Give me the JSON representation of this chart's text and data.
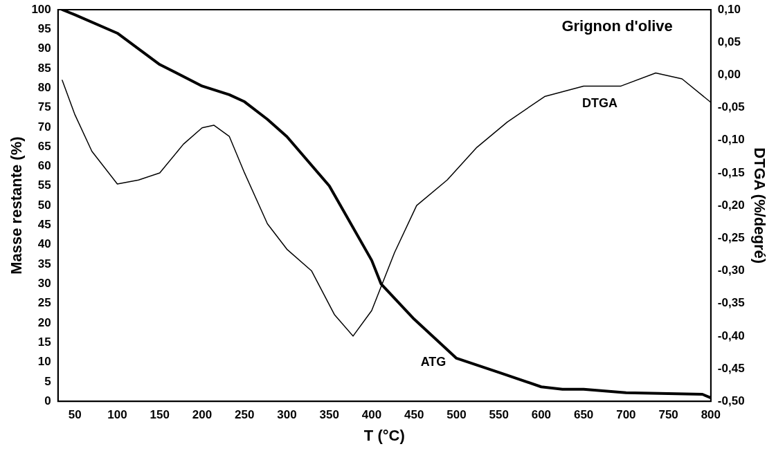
{
  "chart_data": {
    "type": "line",
    "title": "Grignon d'olive",
    "xlabel": "T (°C)",
    "ylabel": "Masse restante (%)",
    "y2label": "DTGA (%/degré)",
    "xlim": [
      30,
      800
    ],
    "xticks": [
      50,
      100,
      150,
      200,
      250,
      300,
      350,
      400,
      450,
      500,
      550,
      600,
      650,
      700,
      750,
      800
    ],
    "ylim": [
      0,
      100
    ],
    "yticks": [
      0,
      5,
      10,
      15,
      20,
      25,
      30,
      35,
      40,
      45,
      50,
      55,
      60,
      65,
      70,
      75,
      80,
      85,
      90,
      95,
      100
    ],
    "y2lim": [
      -0.5,
      0.1
    ],
    "y2ticks": [
      {
        "value": -0.5,
        "label": "-0,50"
      },
      {
        "value": -0.45,
        "label": "-0,45"
      },
      {
        "value": -0.4,
        "label": "-0,40"
      },
      {
        "value": -0.35,
        "label": "-0,35"
      },
      {
        "value": -0.3,
        "label": "-0,30"
      },
      {
        "value": -0.25,
        "label": "-0,25"
      },
      {
        "value": -0.2,
        "label": "-0,20"
      },
      {
        "value": -0.15,
        "label": "-0,15"
      },
      {
        "value": -0.1,
        "label": "-0,10"
      },
      {
        "value": -0.05,
        "label": "-0,05"
      },
      {
        "value": 0,
        "label": "0,00"
      },
      {
        "value": 0.05,
        "label": "0,05"
      },
      {
        "value": 0.1,
        "label": "0,10"
      }
    ],
    "grid": false,
    "legend": false,
    "marker": "none",
    "line_style": "solid",
    "series": [
      {
        "color": "#000000",
        "axis": "y",
        "x": [
          35,
          50,
          100,
          150,
          200,
          232,
          250,
          277,
          300,
          350,
          400,
          411,
          450,
          500,
          550,
          600,
          625,
          650,
          700,
          750,
          790,
          800
        ],
        "values": [
          100,
          98.7,
          94,
          86,
          80.5,
          78.3,
          76.5,
          72,
          67.6,
          55,
          36,
          30,
          21,
          11,
          7.4,
          3.7,
          3.1,
          3.1,
          2.2,
          2,
          1.8,
          0.9
        ]
      },
      {
        "color": "#000000",
        "axis": "y2",
        "x": [
          35,
          50,
          70,
          100,
          125,
          150,
          178,
          200,
          214,
          232,
          250,
          277,
          300,
          329,
          356,
          378,
          400,
          427,
          453,
          489,
          524,
          560,
          604,
          650,
          694,
          735,
          766,
          800
        ],
        "values": [
          -0.008,
          -0.061,
          -0.117,
          -0.167,
          -0.161,
          -0.15,
          -0.106,
          -0.081,
          -0.077,
          -0.094,
          -0.15,
          -0.228,
          -0.267,
          -0.3,
          -0.367,
          -0.4,
          -0.361,
          -0.272,
          -0.2,
          -0.161,
          -0.111,
          -0.072,
          -0.033,
          -0.017,
          -0.017,
          0.003,
          -0.006,
          -0.042
        ]
      }
    ],
    "annotations": [
      "DTGA",
      "ATG"
    ]
  }
}
